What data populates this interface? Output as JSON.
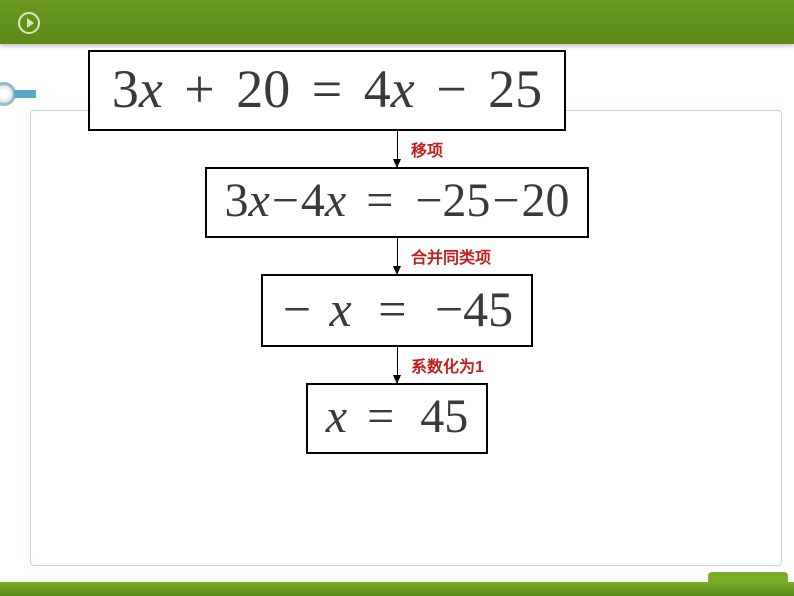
{
  "page": {
    "header_bg": "#5a8a18",
    "label_color": "#c22020",
    "border_color": "#000000",
    "eq_text_color": "#3a3a3a"
  },
  "equation1": {
    "lhs_coef": "3",
    "lhs_var": "x",
    "op1": "+",
    "lhs_const": "20",
    "eq": "=",
    "rhs_coef": "4",
    "rhs_var": "x",
    "op2": "−",
    "rhs_const": "25",
    "fontsize": 54
  },
  "step1_label": "移项",
  "equation2": {
    "text_parts": [
      "3",
      "x",
      "−",
      "4",
      "x",
      "=",
      "−",
      "25",
      "−",
      "20"
    ],
    "fontsize": 48
  },
  "step2_label": "合并同类项",
  "equation3": {
    "neg": "−",
    "var": "x",
    "eq": "=",
    "rhs_neg": "−",
    "rhs": "45",
    "fontsize": 50
  },
  "step3_label": "系数化为1",
  "equation4": {
    "var": "x",
    "eq": "=",
    "rhs": "45",
    "fontsize": 48
  }
}
